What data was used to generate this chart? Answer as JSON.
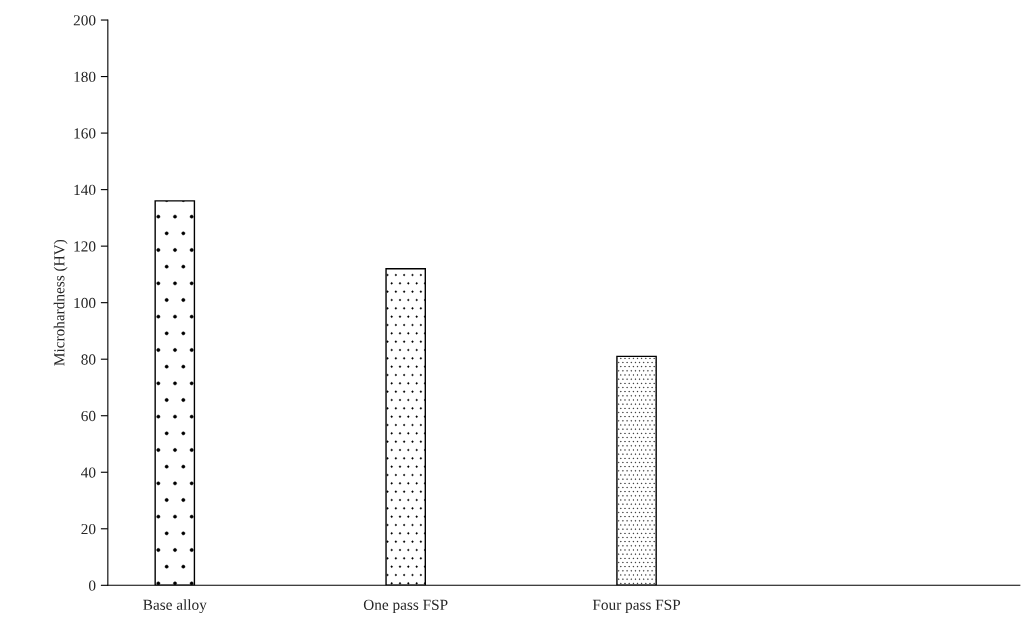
{
  "chart_data": {
    "type": "bar",
    "ylabel": "Microhardness (HV)",
    "categories": [
      "Base alloy",
      "One pass FSP",
      "Four pass FSP"
    ],
    "values": [
      136,
      112,
      81
    ],
    "ylim": [
      0,
      200
    ],
    "yticks": [
      0,
      20,
      40,
      60,
      80,
      100,
      120,
      140,
      160,
      180,
      200
    ],
    "grid": false,
    "legend": false
  }
}
